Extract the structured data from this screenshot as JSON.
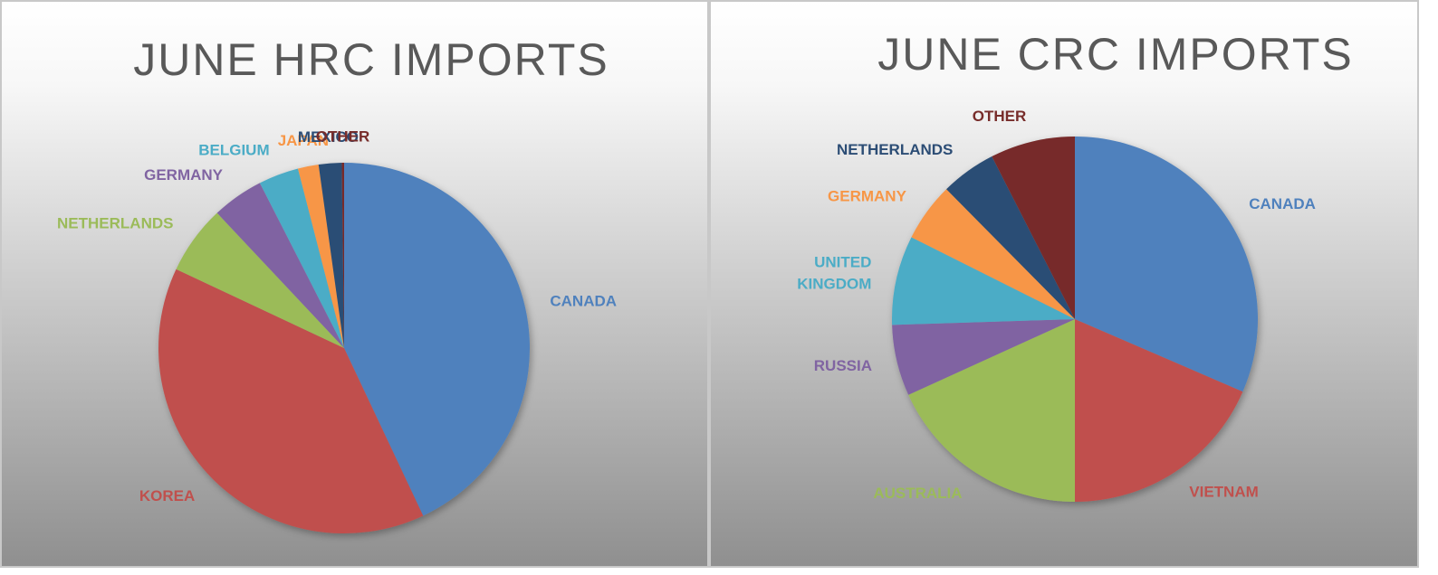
{
  "chart_data": [
    {
      "type": "pie",
      "title": "JUNE HRC IMPORTS",
      "categories": [
        "CANADA",
        "KOREA",
        "NETHERLANDS",
        "GERMANY",
        "BELGIUM",
        "JAPAN",
        "MEXICO",
        "OTHER"
      ],
      "values": [
        43,
        39,
        6,
        4.5,
        3.5,
        1.8,
        2,
        0.2
      ],
      "colors": [
        "#4f81bd",
        "#c0504d",
        "#9bbb59",
        "#8064a2",
        "#4bacc6",
        "#f79646",
        "#2c4d75",
        "#772c2a"
      ]
    },
    {
      "type": "pie",
      "title": "JUNE CRC IMPORTS",
      "categories": [
        "CANADA",
        "VIETNAM",
        "AUSTRALIA",
        "RUSSIA",
        "UNITED KINGDOM",
        "GERMANY",
        "NETHERLANDS",
        "OTHER"
      ],
      "values": [
        31.5,
        18.5,
        18.2,
        6.3,
        7.9,
        5.2,
        4.9,
        7.5
      ],
      "colors": [
        "#4f81bd",
        "#c0504d",
        "#9bbb59",
        "#8064a2",
        "#4bacc6",
        "#f79646",
        "#2c4d75",
        "#772c2a"
      ]
    }
  ]
}
